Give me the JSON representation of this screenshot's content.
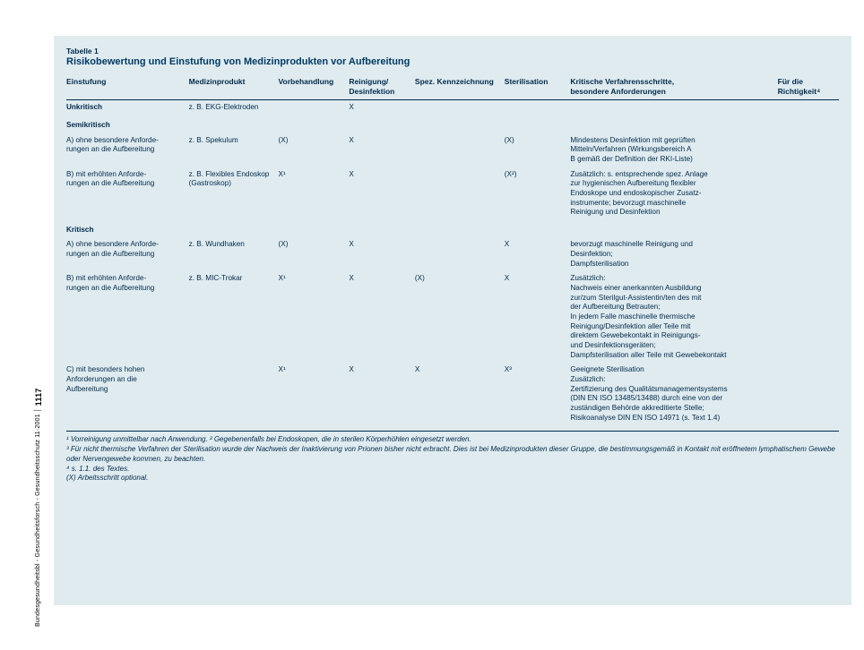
{
  "table": {
    "label": "Tabelle 1",
    "title": "Risikobewertung und Einstufung von Medizinprodukten vor Aufbereitung",
    "headers": {
      "c1": "Einstufung",
      "c2": "Medizinprodukt",
      "c3": "Vorbehandlung",
      "c4": "Reinigung/\nDesinfektion",
      "c5": "Spez. Kennzeichnung",
      "c6": "Sterilisation",
      "c7": "Kritische Verfahrensschritte,\n besondere Anforderungen",
      "c8": "Für die\nRichtigkeit⁴"
    },
    "unkritisch": {
      "label": "Unkritisch",
      "prod": "z. B. EKG‑Elektroden",
      "vor": "",
      "rd": "X",
      "spez": "",
      "ster": "",
      "krit": ""
    },
    "semi": {
      "label": "Semikritisch",
      "a": {
        "einst": "A) ohne besondere Anforde-\nrungen an die Aufbereitung",
        "prod": "z. B. Spekulum",
        "vor": "(X)",
        "rd": "X",
        "spez": "",
        "ster": "(X)",
        "krit": "Mindestens Desinfektion mit geprüften\nMitteln/Verfahren (Wirkungsbereich A\nB gemäß der Definition der RKI‑Liste)"
      },
      "b": {
        "einst": "B) mit erhöhten Anforde-\nrungen an die Aufbereitung",
        "prod": "z. B. Flexibles Endoskop\n(Gastroskop)",
        "vor": "X¹",
        "rd": "X",
        "spez": "",
        "ster": "(X²)",
        "krit": "Zusätzlich: s. entsprechende spez. Anlage\nzur hygienischen Aufbereitung flexibler\nEndoskope und endoskopischer Zusatz-\ninstrumente; bevorzugt maschinelle\nReinigung und Desinfektion"
      }
    },
    "kritisch": {
      "label": "Kritisch",
      "a": {
        "einst": "A) ohne besondere Anforde-\nrungen an die Aufbereitung",
        "prod": "z. B. Wundhaken",
        "vor": "(X)",
        "rd": "X",
        "spez": "",
        "ster": "X",
        "krit": "bevorzugt maschinelle Reinigung und\nDesinfektion;\nDampfsterilisation"
      },
      "b": {
        "einst": "B) mit erhöhten Anforde-\nrungen an die Aufbereitung",
        "prod": "z. B. MIC‑Trokar",
        "vor": "X¹",
        "rd": "X",
        "spez": "(X)",
        "ster": "X",
        "krit": "Zusätzlich:\nNachweis einer anerkannten Ausbildung\nzur/zum Sterilgut‑Assistentin/ten des mit\nder Aufbereitung Betrauten;\nIn jedem Falle maschinelle thermische\nReinigung/Desinfektion aller Teile mit\ndirektem Gewebekontakt in Reinigungs-\nund Desinfektionsgeräten;\nDampfsterilisation aller Teile mit Gewebekontakt"
      },
      "c": {
        "einst": "C) mit besonders hohen\nAnforderungen an die\nAufbereitung",
        "prod": "",
        "vor": "X¹",
        "rd": "X",
        "spez": "X",
        "ster": "X³",
        "krit": "Geeignete Sterilisation\nZusätzlich:\nZertifizierung des Qualitätsmanagementsystems\n(DIN EN ISO 13485/13488) durch eine von der\nzuständigen Behörde akkreditierte Stelle;\nRisikoanalyse DIN EN ISO 14971 (s. Text 1.4)"
      }
    }
  },
  "footnotes": {
    "l1": "¹ Vorreinigung unmittelbar nach Anwendung. ² Gegebenenfalls bei Endoskopen, die in sterilen Körperhöhlen eingesetzt werden.",
    "l2": "³ Für nicht thermische Verfahren der Sterilisation wurde der Nachweis der Inaktivierung von Prionen bisher nicht erbracht. Dies ist bei Medizinprodukten dieser Gruppe, die bestimmungsgemäß in Kontakt mit eröffnetem\nlymphatischem Gewebe oder Nervengewebe kommen, zu beachten.",
    "l3": "⁴ s. 1.1. des Textes.",
    "l4": "(X) Arbeitsschritt optional."
  },
  "sidebar": {
    "journal": "Bundesgesundheitsbl - Gesundheitsforsch - Gesundheitsschutz 11·2001",
    "page": "1117"
  }
}
